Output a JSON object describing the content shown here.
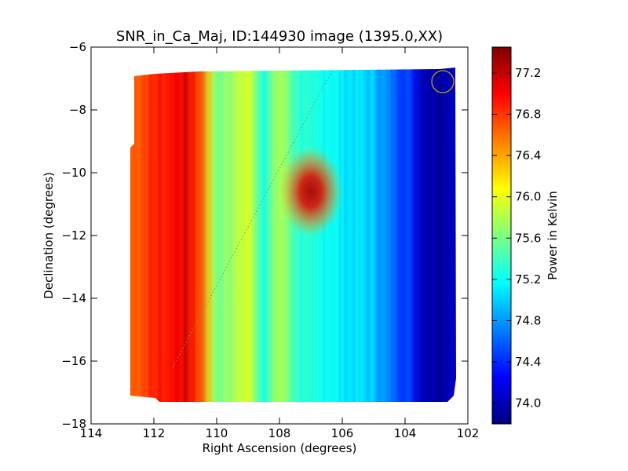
{
  "chart_data": {
    "type": "heatmap",
    "title": "SNR_in_Ca_Maj, ID:144930 image (1395.0,XX)",
    "xlabel": "Right Ascension (degrees)",
    "ylabel": "Declination (degrees)",
    "xlim": [
      114,
      102
    ],
    "ylim": [
      -18,
      -6
    ],
    "x_ticks": [
      114,
      112,
      110,
      108,
      106,
      104,
      102
    ],
    "y_ticks": [
      -6,
      -8,
      -10,
      -12,
      -14,
      -16,
      -18
    ],
    "colorbar": {
      "label": "Power in Kelvin",
      "range": [
        73.8,
        77.45
      ],
      "ticks": [
        "77.2",
        "76.8",
        "76.4",
        "76.0",
        "75.6",
        "75.2",
        "74.8",
        "74.4",
        "74.0"
      ]
    },
    "map_extent": {
      "ra": [
        112.7,
        102.4
      ],
      "dec": [
        -17.3,
        -6.7
      ]
    },
    "profile_ra": [
      112.7,
      112.0,
      111.5,
      111.0,
      110.5,
      110.0,
      109.5,
      109.0,
      108.5,
      108.0,
      107.5,
      107.0,
      106.5,
      106.0,
      105.5,
      105.0,
      104.5,
      104.0,
      103.5,
      103.0,
      102.4
    ],
    "profile_kelvin": [
      76.65,
      76.85,
      76.95,
      77.1,
      76.7,
      75.6,
      75.75,
      75.95,
      75.3,
      75.8,
      75.4,
      75.2,
      75.25,
      75.1,
      75.05,
      74.95,
      74.65,
      74.5,
      74.05,
      73.95,
      74.1
    ],
    "hotspot": {
      "ra": 107.0,
      "dec": -10.6,
      "peak_kelvin": 77.2
    },
    "beam_marker": {
      "ra": 102.8,
      "dec": -7.1,
      "radius_deg": 0.35
    },
    "dotted_track": {
      "start": [
        111.4,
        -16.2
      ],
      "end": [
        106.3,
        -6.7
      ]
    }
  }
}
